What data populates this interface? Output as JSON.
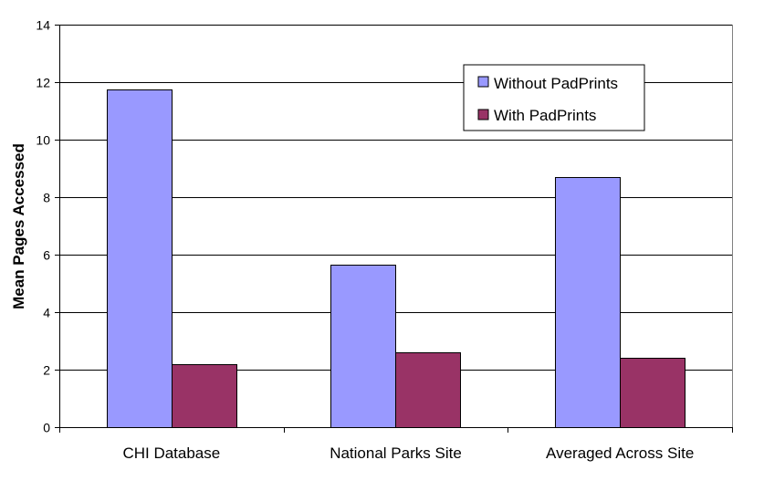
{
  "chart_data": {
    "type": "bar",
    "title": "",
    "xlabel": "",
    "ylabel": "Mean Pages Accessed",
    "ylim": [
      0,
      14
    ],
    "yticks": [
      0,
      2,
      4,
      6,
      8,
      10,
      12,
      14
    ],
    "grid": true,
    "legend_position": "top-right",
    "categories": [
      "CHI Database",
      "National Parks Site",
      "Averaged Across Site"
    ],
    "series": [
      {
        "name": "Without PadPrints",
        "color": "#9999FF",
        "values": [
          11.75,
          5.65,
          8.7
        ]
      },
      {
        "name": "With PadPrints",
        "color": "#993366",
        "values": [
          2.2,
          2.6,
          2.4
        ]
      }
    ]
  }
}
